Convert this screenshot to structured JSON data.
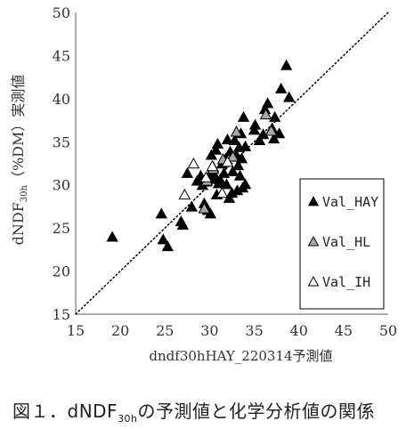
{
  "chart_data": {
    "type": "scatter",
    "xlabel": "dndf30hHAY_220314予測値",
    "ylabel_main": "dNDF",
    "ylabel_sub": "30h",
    "ylabel_suffix": "（%DM）実測値",
    "xlim": [
      15,
      50
    ],
    "ylim": [
      15,
      50
    ],
    "xticks": [
      "15",
      "20",
      "25",
      "30",
      "35",
      "40",
      "45",
      "50"
    ],
    "yticks": [
      "15",
      "20",
      "25",
      "30",
      "35",
      "40",
      "45",
      "50"
    ],
    "reference_line": "1:1 dotted",
    "legend_position": "right-bottom inside plot",
    "series": [
      {
        "name": "Val_HAY",
        "marker": "filled-triangle",
        "color": "#000000",
        "points": [
          [
            19.1,
            23.9
          ],
          [
            24.6,
            26.6
          ],
          [
            24.8,
            23.6
          ],
          [
            25.3,
            22.8
          ],
          [
            26.8,
            25.7
          ],
          [
            27.0,
            25.3
          ],
          [
            27.5,
            31.3
          ],
          [
            28.0,
            27.4
          ],
          [
            28.6,
            30.4
          ],
          [
            29.0,
            31.0
          ],
          [
            29.2,
            29.9
          ],
          [
            29.4,
            27.8
          ],
          [
            29.6,
            30.3
          ],
          [
            29.8,
            27.0
          ],
          [
            30.0,
            31.1
          ],
          [
            30.1,
            26.6
          ],
          [
            30.2,
            33.4
          ],
          [
            30.4,
            32.0
          ],
          [
            30.5,
            30.6
          ],
          [
            30.6,
            31.0
          ],
          [
            30.7,
            34.0
          ],
          [
            30.8,
            28.8
          ],
          [
            30.9,
            34.7
          ],
          [
            31.0,
            30.1
          ],
          [
            31.2,
            30.5
          ],
          [
            31.4,
            32.4
          ],
          [
            31.6,
            31.3
          ],
          [
            31.8,
            33.0
          ],
          [
            31.9,
            30.0
          ],
          [
            32.0,
            35.2
          ],
          [
            32.2,
            28.4
          ],
          [
            32.3,
            33.8
          ],
          [
            32.5,
            29.0
          ],
          [
            32.6,
            31.5
          ],
          [
            32.8,
            35.1
          ],
          [
            33.0,
            33.4
          ],
          [
            33.1,
            29.3
          ],
          [
            33.2,
            32.2
          ],
          [
            33.3,
            34.3
          ],
          [
            33.4,
            31.0
          ],
          [
            33.5,
            35.9
          ],
          [
            33.6,
            33.0
          ],
          [
            33.7,
            29.6
          ],
          [
            33.8,
            37.8
          ],
          [
            34.0,
            30.0
          ],
          [
            34.0,
            34.4
          ],
          [
            35.0,
            36.3
          ],
          [
            35.1,
            36.9
          ],
          [
            35.6,
            35.1
          ],
          [
            36.0,
            35.8
          ],
          [
            36.2,
            38.7
          ],
          [
            36.5,
            39.4
          ],
          [
            37.0,
            36.5
          ],
          [
            37.2,
            35.3
          ],
          [
            37.3,
            37.8
          ],
          [
            37.8,
            35.9
          ],
          [
            38.0,
            41.1
          ],
          [
            38.6,
            43.8
          ],
          [
            38.9,
            40.1
          ]
        ]
      },
      {
        "name": "Val_HL",
        "marker": "gray-triangle",
        "color": "#a8a8a8",
        "points": [
          [
            29.4,
            27.2
          ],
          [
            29.7,
            30.4
          ],
          [
            30.4,
            31.8
          ],
          [
            31.5,
            32.9
          ],
          [
            32.6,
            33.2
          ],
          [
            33.0,
            36.1
          ],
          [
            36.3,
            38.1
          ],
          [
            36.9,
            36.2
          ]
        ]
      },
      {
        "name": "Val_IH",
        "marker": "open-triangle",
        "color": "#ffffff",
        "points": [
          [
            27.2,
            28.8
          ],
          [
            28.2,
            32.4
          ],
          [
            29.6,
            30.8
          ],
          [
            30.3,
            32.1
          ],
          [
            31.4,
            29.0
          ],
          [
            32.0,
            32.6
          ]
        ]
      }
    ]
  },
  "caption": {
    "prefix": "図１．",
    "term": "dNDF",
    "term_sub": "30h",
    "suffix": "の予測値と化学分析値の関係"
  }
}
